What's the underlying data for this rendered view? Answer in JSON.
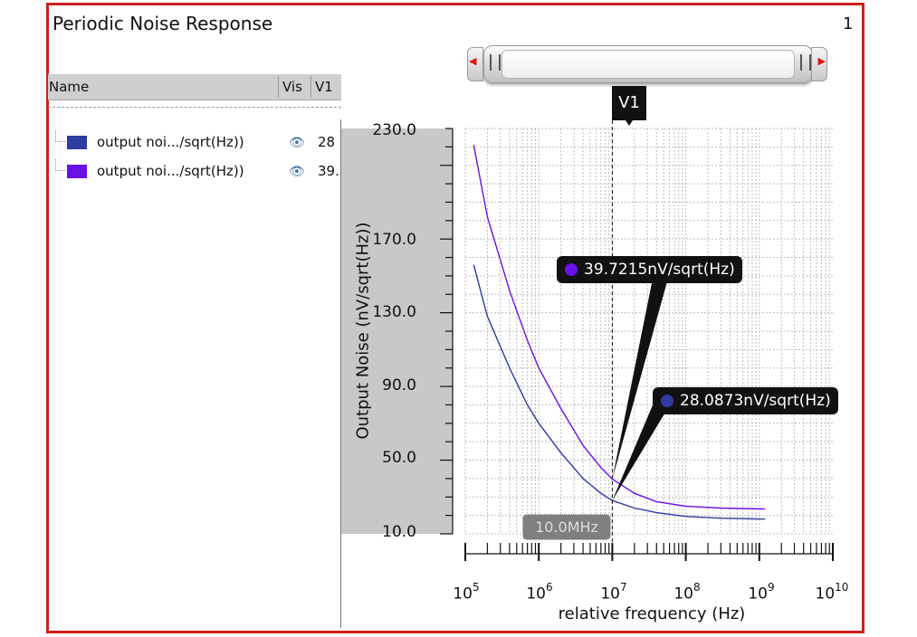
{
  "window": {
    "title": "Periodic Noise Response",
    "page_number": "1"
  },
  "legend": {
    "headers": {
      "name": "Name",
      "vis": "Vis",
      "v1": "V1"
    },
    "rows": [
      {
        "name": "output noi.../sqrt(Hz))",
        "color": "#2e3ba0",
        "vis_icon": "eye-icon",
        "v1": "28"
      },
      {
        "name": "output noi.../sqrt(Hz))",
        "color": "#6a10e8",
        "vis_icon": "eye-icon",
        "v1": "39."
      }
    ]
  },
  "marker": {
    "label": "V1",
    "x_value": 10000000,
    "freq_readout": "10.0MHz"
  },
  "callouts": [
    {
      "text": "39.7215nV/sqrt(Hz)",
      "series_index": 1
    },
    {
      "text": "28.0873nV/sqrt(Hz)",
      "series_index": 0
    }
  ],
  "chart_data": {
    "type": "line",
    "title": "",
    "xlabel": "relative frequency (Hz)",
    "ylabel": "Output Noise (nV/sqrt(Hz))",
    "x_scale": "log",
    "xlim": [
      100000,
      10000000000
    ],
    "ylim": [
      10,
      230
    ],
    "x_ticks": [
      "10^5",
      "10^6",
      "10^7",
      "10^8",
      "10^9",
      "10^10"
    ],
    "y_ticks": [
      "230.0",
      "170.0",
      "130.0",
      "90.0",
      "50.0",
      "10.0"
    ],
    "y_tick_values": [
      230,
      170,
      130,
      90,
      50,
      10
    ],
    "grid": true,
    "series": [
      {
        "color": "#2e3ba0",
        "x": [
          130000,
          200000,
          400000,
          700000,
          1000000,
          2000000,
          4000000,
          7000000,
          10000000,
          20000000,
          40000000,
          100000000,
          300000000,
          1200000000
        ],
        "y": [
          156,
          128,
          100,
          80,
          70,
          54,
          40,
          32,
          28.09,
          24,
          21.5,
          19.5,
          18.5,
          18
        ]
      },
      {
        "color": "#6a10e8",
        "x": [
          130000,
          200000,
          400000,
          700000,
          1000000,
          2000000,
          4000000,
          7000000,
          10000000,
          20000000,
          40000000,
          100000000,
          300000000,
          1200000000
        ],
        "y": [
          221,
          182,
          142,
          115,
          100,
          78,
          58,
          46,
          39.72,
          32,
          27.5,
          25,
          24,
          23.5
        ]
      }
    ]
  }
}
